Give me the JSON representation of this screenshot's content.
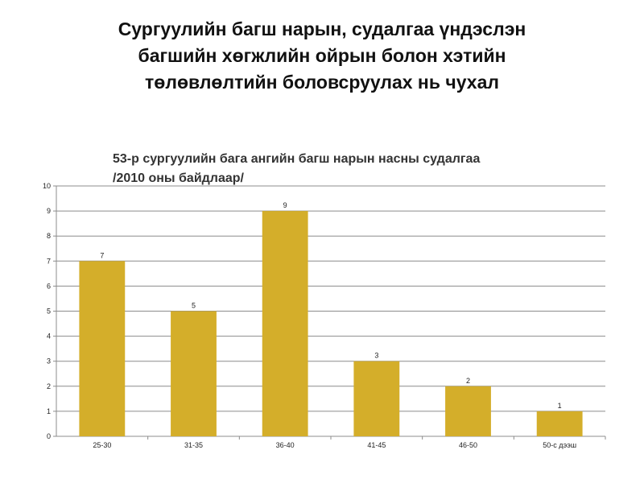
{
  "slide": {
    "title_lines": [
      "Сургуулийн багш нарын, судалгаа үндэслэн",
      "багшийн хөгжлийн ойрын болон хэтийн",
      "төлөвлөлтийн боловсруулах нь чухал"
    ]
  },
  "chart_data": {
    "type": "bar",
    "title_lines": [
      "53-р сургуулийн бага ангийн багш нарын насны судалгаа",
      "/2010 оны байдлаар/"
    ],
    "categories": [
      "25-30",
      "31-35",
      "36-40",
      "41-45",
      "46-50",
      "50-с дээш"
    ],
    "values": [
      7,
      5,
      9,
      3,
      2,
      1
    ],
    "data_labels": [
      "7",
      "5",
      "9",
      "3",
      "2",
      "1"
    ],
    "y_ticks": [
      "0",
      "1",
      "2",
      "3",
      "4",
      "5",
      "6",
      "7",
      "8",
      "9",
      "10"
    ],
    "ylim": [
      0,
      10
    ],
    "grid": true,
    "bar_color": "#D4AE2A",
    "grid_color": "#8C8C8C",
    "legend": "none"
  }
}
